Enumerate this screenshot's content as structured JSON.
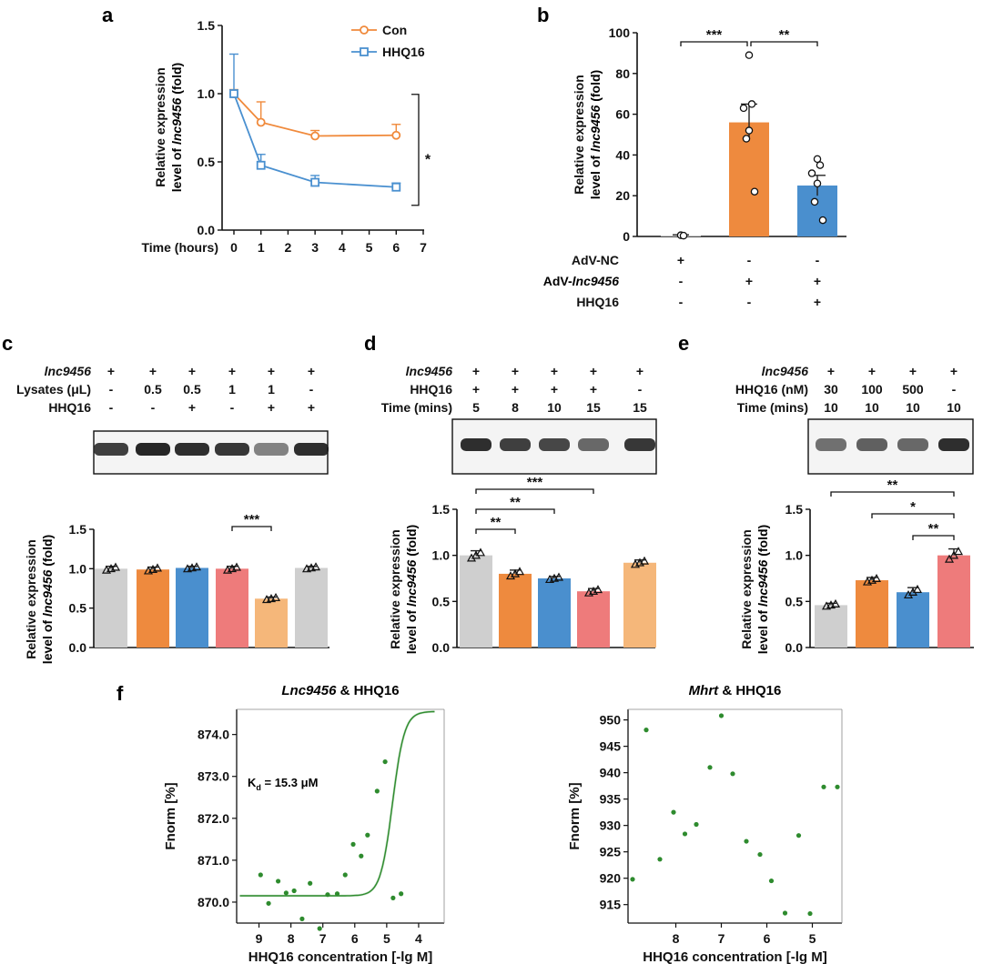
{
  "colors": {
    "con": "#f08a3c",
    "hhq16": "#4a90d0",
    "grey": "#cfcfcf",
    "orange": "#ee8a3e",
    "blue": "#4a8fce",
    "pink": "#ee7b7b",
    "light_orange": "#f5b77a",
    "fit": "#2e8b2e",
    "points": "#2e8b2e"
  },
  "panel_labels": [
    "a",
    "b",
    "c",
    "d",
    "e",
    "f"
  ],
  "chart_data": [
    {
      "id": "a",
      "type": "line",
      "title": "",
      "xlabel": "Time (hours)",
      "ylabel_line1": "Relative expression",
      "ylabel_line2_prefix": "level of ",
      "ylabel_line2_italic": "lnc9456",
      "ylabel_line2_suffix": " (fold)",
      "xlim": [
        0,
        7
      ],
      "ylim": [
        0,
        1.5
      ],
      "xticks": [
        "0",
        "1",
        "2",
        "3",
        "4",
        "5",
        "6",
        "7"
      ],
      "yticks": [
        "0.0",
        "0.5",
        "1.0",
        "1.5"
      ],
      "x": [
        0,
        1,
        3,
        6
      ],
      "series": [
        {
          "name": "Con",
          "values": [
            1.0,
            0.79,
            0.69,
            0.695
          ],
          "errors": [
            0.03,
            0.15,
            0.04,
            0.08
          ],
          "marker": "circle"
        },
        {
          "name": "HHQ16",
          "values": [
            1.0,
            0.475,
            0.35,
            0.315
          ],
          "errors": [
            0.29,
            0.08,
            0.05,
            0.03
          ],
          "marker": "square"
        }
      ],
      "significance": "*"
    },
    {
      "id": "b",
      "type": "bar",
      "ylabel_line1": "Relative expression",
      "ylabel_line2_prefix": "level of ",
      "ylabel_line2_italic": "lnc9456",
      "ylabel_line2_suffix": " (fold)",
      "ylim": [
        0,
        100
      ],
      "yticks": [
        "0",
        "20",
        "40",
        "60",
        "80",
        "100"
      ],
      "values": [
        0.5,
        56,
        25
      ],
      "errors": [
        0.3,
        9,
        5
      ],
      "points": [
        [
          0.6,
          0.4
        ],
        [
          89,
          65,
          63,
          52,
          48,
          22
        ],
        [
          38,
          35,
          31,
          26,
          17,
          8
        ]
      ],
      "comparisons": [
        {
          "from": 0,
          "to": 1,
          "label": "***"
        },
        {
          "from": 1,
          "to": 2,
          "label": "**"
        }
      ],
      "condition_rows": [
        {
          "label": "AdV-NC",
          "signs": [
            "+",
            "-",
            "-"
          ]
        },
        {
          "label_prefix": "AdV-",
          "label_italic": "lnc9456",
          "signs": [
            "-",
            "+",
            "+"
          ]
        },
        {
          "label": "HHQ16",
          "signs": [
            "-",
            "-",
            "+"
          ]
        }
      ]
    },
    {
      "id": "c",
      "type": "bar",
      "ylabel_line1": "Relative expression",
      "ylabel_line2_prefix": "level of ",
      "ylabel_line2_italic": "lnc9456",
      "ylabel_line2_suffix": " (fold)",
      "ylim": [
        0,
        1.5
      ],
      "yticks": [
        "0.0",
        "0.5",
        "1.0",
        "1.5"
      ],
      "values": [
        1.0,
        0.99,
        1.01,
        1.0,
        0.62,
        1.01
      ],
      "errors": [
        0.03,
        0.03,
        0.02,
        0.03,
        0.02,
        0.02
      ],
      "comparisons": [
        {
          "from": 3,
          "to": 4,
          "label": "***"
        }
      ],
      "condition_rows": [
        {
          "label": "lnc9456",
          "italic": true,
          "signs": [
            "+",
            "+",
            "+",
            "+",
            "+",
            "+"
          ]
        },
        {
          "label": "Lysates (μL)",
          "signs": [
            "-",
            "0.5",
            "0.5",
            "1",
            "1",
            "-"
          ]
        },
        {
          "label": "HHQ16",
          "signs": [
            "-",
            "-",
            "+",
            "-",
            "+",
            "+"
          ]
        }
      ],
      "gel_intensity": [
        0.85,
        1.0,
        0.95,
        0.9,
        0.45,
        0.95
      ]
    },
    {
      "id": "d",
      "type": "bar",
      "ylabel_line1": "Relative expression",
      "ylabel_line2_prefix": "level of ",
      "ylabel_line2_italic": "lnc9456",
      "ylabel_line2_suffix": " (fold)",
      "ylim": [
        0,
        1.5
      ],
      "yticks": [
        "0.0",
        "0.5",
        "1.0",
        "1.5"
      ],
      "values": [
        1.0,
        0.8,
        0.75,
        0.61,
        0.92
      ],
      "errors": [
        0.05,
        0.04,
        0.02,
        0.03,
        0.03
      ],
      "comparisons": [
        {
          "from": 0,
          "to": 1,
          "label": "**"
        },
        {
          "from": 0,
          "to": 2,
          "label": "**"
        },
        {
          "from": 0,
          "to": 3,
          "label": "***"
        }
      ],
      "condition_rows": [
        {
          "label": "lnc9456",
          "italic": true,
          "signs": [
            "+",
            "+",
            "+",
            "+",
            "+"
          ]
        },
        {
          "label": "HHQ16",
          "signs": [
            "+",
            "+",
            "+",
            "+",
            "-"
          ]
        },
        {
          "label": "Time (mins)",
          "signs": [
            "5",
            "8",
            "10",
            "15",
            "15"
          ]
        }
      ],
      "gel_intensity": [
        0.95,
        0.85,
        0.8,
        0.6,
        0.9
      ]
    },
    {
      "id": "e",
      "type": "bar",
      "ylabel_line1": "Relative expression",
      "ylabel_line2_prefix": "level of ",
      "ylabel_line2_italic": "lnc9456",
      "ylabel_line2_suffix": " (fold)",
      "ylim": [
        0,
        1.5
      ],
      "yticks": [
        "0.0",
        "0.5",
        "1.0",
        "1.5"
      ],
      "values": [
        0.46,
        0.73,
        0.6,
        1.0
      ],
      "errors": [
        0.02,
        0.03,
        0.05,
        0.07
      ],
      "comparisons": [
        {
          "from": 0,
          "to": 3,
          "label": "**"
        },
        {
          "from": 1,
          "to": 3,
          "label": "*"
        },
        {
          "from": 2,
          "to": 3,
          "label": "**"
        }
      ],
      "condition_rows": [
        {
          "label": "lnc9456",
          "italic": true,
          "signs": [
            "+",
            "+",
            "+",
            "+"
          ]
        },
        {
          "label": "HHQ16 (nM)",
          "signs": [
            "30",
            "100",
            "500",
            "-"
          ]
        },
        {
          "label": "Time (mins)",
          "signs": [
            "10",
            "10",
            "10",
            "10"
          ]
        }
      ],
      "gel_intensity": [
        0.55,
        0.65,
        0.6,
        0.95
      ]
    },
    {
      "id": "f1",
      "type": "scatter",
      "title_italic": "Lnc9456",
      "title_suffix": " & HHQ16",
      "xlabel": "HHQ16 concentration [-lg M]",
      "ylabel": "Fnorm [%]",
      "xlim": [
        9.7,
        3.2
      ],
      "ylim": [
        869.5,
        874.6
      ],
      "xticks": [
        "9",
        "8",
        "7",
        "6",
        "5",
        "4"
      ],
      "yticks": [
        "870.0",
        "871.0",
        "872.0",
        "873.0",
        "874.0"
      ],
      "annotation": "Kd = 15.3 μM",
      "annotation_main": "K",
      "annotation_sub": "d",
      "annotation_rest": " = 15.3 μM",
      "x": [
        8.95,
        8.7,
        8.4,
        8.15,
        7.9,
        7.65,
        7.4,
        7.1,
        6.85,
        6.55,
        6.3,
        6.05,
        5.8,
        5.6,
        5.3,
        5.05,
        4.8,
        4.55
      ],
      "y": [
        870.65,
        869.97,
        870.5,
        870.22,
        870.27,
        869.6,
        870.45,
        869.37,
        870.18,
        870.2,
        870.65,
        871.38,
        871.1,
        871.6,
        872.65,
        873.35,
        870.1,
        870.2
      ],
      "fit": {
        "bottom": 870.15,
        "top": 874.55,
        "x50": 4.82,
        "slope": 1.05
      }
    },
    {
      "id": "f2",
      "type": "scatter",
      "title_italic": "Mhrt",
      "title_suffix": " & HHQ16",
      "xlabel": "HHQ16 concentration [-lg M]",
      "ylabel": "Fnorm [%]",
      "xlim": [
        9.05,
        4.35
      ],
      "ylim": [
        911.5,
        952
      ],
      "xticks": [
        "8",
        "7",
        "6",
        "5"
      ],
      "yticks": [
        "915",
        "920",
        "925",
        "930",
        "935",
        "940",
        "945",
        "950"
      ],
      "x": [
        8.95,
        8.65,
        8.35,
        8.05,
        7.8,
        7.55,
        7.25,
        7.0,
        6.75,
        6.45,
        6.15,
        5.9,
        5.6,
        5.3,
        5.05,
        4.75,
        4.45
      ],
      "y": [
        919.8,
        948.1,
        923.6,
        932.5,
        928.4,
        930.2,
        941.0,
        950.8,
        939.8,
        927.0,
        924.5,
        919.5,
        913.4,
        928.1,
        913.3,
        937.3,
        937.3
      ]
    }
  ]
}
